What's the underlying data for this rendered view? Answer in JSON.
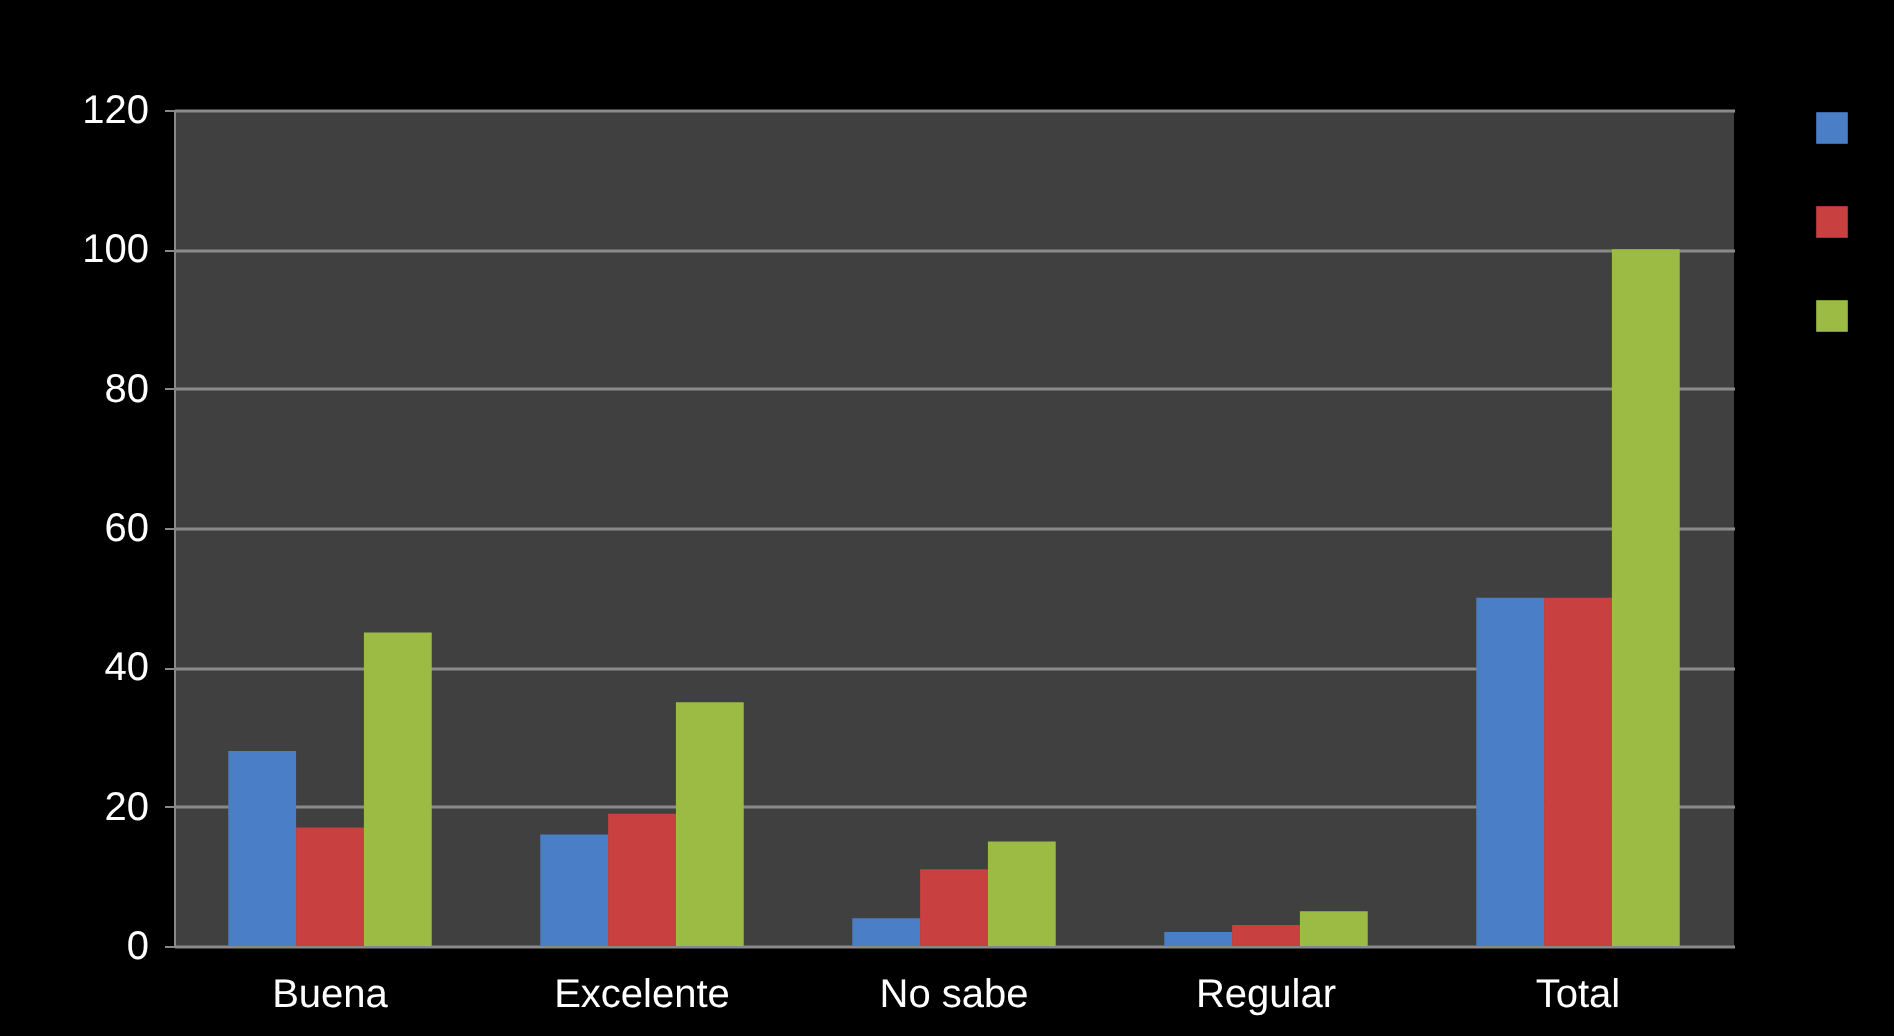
{
  "chart_data": {
    "type": "bar",
    "categories": [
      "Buena",
      "Excelente",
      "No sabe",
      "Regular",
      "Total"
    ],
    "series": [
      {
        "color": "#4a7fc8",
        "values": [
          28,
          16,
          4,
          2,
          50
        ]
      },
      {
        "color": "#c84040",
        "values": [
          17,
          19,
          11,
          3,
          50
        ]
      },
      {
        "color": "#9bbb45",
        "values": [
          45,
          35,
          15,
          5,
          100
        ]
      }
    ],
    "ylim": [
      0,
      120
    ],
    "yticks": [
      0,
      20,
      40,
      60,
      80,
      100,
      120
    ],
    "grid": "y"
  }
}
